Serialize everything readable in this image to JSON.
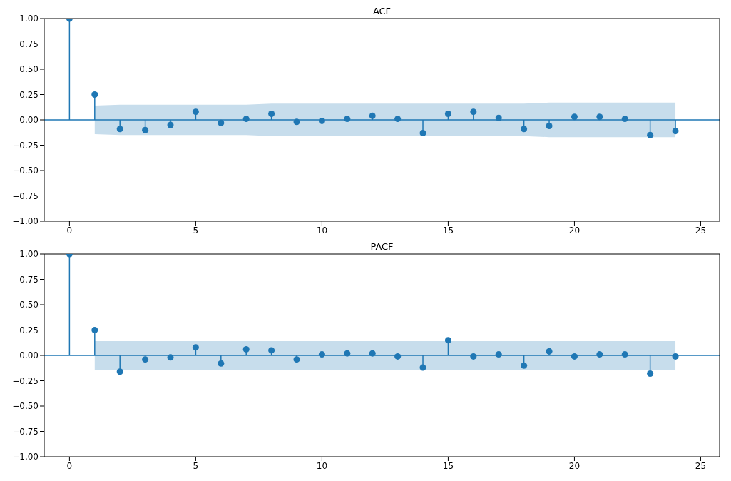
{
  "chart_data": [
    {
      "type": "lollipop",
      "title": "ACF",
      "xlim": [
        -1,
        25.75
      ],
      "xticks": [
        0,
        5,
        10,
        15,
        20,
        25
      ],
      "ylim": [
        -1,
        1
      ],
      "yticks": [
        {
          "value": -1,
          "label": "−1.00"
        },
        {
          "value": -0.75,
          "label": "−0.75"
        },
        {
          "value": -0.5,
          "label": "−0.50"
        },
        {
          "value": -0.25,
          "label": "−0.25"
        },
        {
          "value": 0,
          "label": "0.00"
        },
        {
          "value": 0.25,
          "label": "0.25"
        },
        {
          "value": 0.5,
          "label": "0.50"
        },
        {
          "value": 0.75,
          "label": "0.75"
        },
        {
          "value": 1,
          "label": "1.00"
        }
      ],
      "marker": "circle",
      "line_style": "solid",
      "ref_lines": [
        {
          "axis": "y",
          "value": 0,
          "color": "#1f77b4"
        }
      ],
      "series": [
        {
          "color": "#1f77b4",
          "x": [
            0,
            1,
            2,
            3,
            4,
            5,
            6,
            7,
            8,
            9,
            10,
            11,
            12,
            13,
            14,
            15,
            16,
            17,
            18,
            19,
            20,
            21,
            22,
            23,
            24
          ],
          "values": [
            1,
            0.25,
            -0.09,
            -0.1,
            -0.05,
            0.08,
            -0.03,
            0.01,
            0.06,
            -0.02,
            -0.01,
            0.01,
            0.04,
            0.01,
            -0.13,
            0.06,
            0.08,
            0.02,
            -0.09,
            -0.06,
            0.03,
            0.03,
            0.01,
            -0.15,
            -0.11
          ],
          "lower": [
            null,
            -0.14,
            -0.15,
            -0.15,
            -0.15,
            -0.15,
            -0.15,
            -0.15,
            -0.16,
            -0.16,
            -0.16,
            -0.16,
            -0.16,
            -0.16,
            -0.16,
            -0.16,
            -0.16,
            -0.16,
            -0.16,
            -0.17,
            -0.17,
            -0.17,
            -0.17,
            -0.17,
            -0.17
          ],
          "upper": [
            null,
            0.14,
            0.15,
            0.15,
            0.15,
            0.15,
            0.15,
            0.15,
            0.16,
            0.16,
            0.16,
            0.16,
            0.16,
            0.16,
            0.16,
            0.16,
            0.16,
            0.16,
            0.16,
            0.17,
            0.17,
            0.17,
            0.17,
            0.17,
            0.17
          ]
        }
      ]
    },
    {
      "type": "lollipop",
      "title": "PACF",
      "xlim": [
        -1,
        25.75
      ],
      "xticks": [
        0,
        5,
        10,
        15,
        20,
        25
      ],
      "ylim": [
        -1,
        1
      ],
      "yticks": [
        {
          "value": -1,
          "label": "−1.00"
        },
        {
          "value": -0.75,
          "label": "−0.75"
        },
        {
          "value": -0.5,
          "label": "−0.50"
        },
        {
          "value": -0.25,
          "label": "−0.25"
        },
        {
          "value": 0,
          "label": "0.00"
        },
        {
          "value": 0.25,
          "label": "0.25"
        },
        {
          "value": 0.5,
          "label": "0.50"
        },
        {
          "value": 0.75,
          "label": "0.75"
        },
        {
          "value": 1,
          "label": "1.00"
        }
      ],
      "marker": "circle",
      "line_style": "solid",
      "ref_lines": [
        {
          "axis": "y",
          "value": 0,
          "color": "#1f77b4"
        }
      ],
      "series": [
        {
          "color": "#1f77b4",
          "x": [
            0,
            1,
            2,
            3,
            4,
            5,
            6,
            7,
            8,
            9,
            10,
            11,
            12,
            13,
            14,
            15,
            16,
            17,
            18,
            19,
            20,
            21,
            22,
            23,
            24
          ],
          "values": [
            1,
            0.25,
            -0.16,
            -0.04,
            -0.02,
            0.08,
            -0.08,
            0.06,
            0.05,
            -0.04,
            0.01,
            0.02,
            0.02,
            -0.01,
            -0.12,
            0.15,
            -0.01,
            0.01,
            -0.1,
            0.04,
            -0.01,
            0.01,
            0.01,
            -0.18,
            -0.01
          ],
          "lower": [
            null,
            -0.14,
            -0.14,
            -0.14,
            -0.14,
            -0.14,
            -0.14,
            -0.14,
            -0.14,
            -0.14,
            -0.14,
            -0.14,
            -0.14,
            -0.14,
            -0.14,
            -0.14,
            -0.14,
            -0.14,
            -0.14,
            -0.14,
            -0.14,
            -0.14,
            -0.14,
            -0.14,
            -0.14
          ],
          "upper": [
            null,
            0.14,
            0.14,
            0.14,
            0.14,
            0.14,
            0.14,
            0.14,
            0.14,
            0.14,
            0.14,
            0.14,
            0.14,
            0.14,
            0.14,
            0.14,
            0.14,
            0.14,
            0.14,
            0.14,
            0.14,
            0.14,
            0.14,
            0.14,
            0.14
          ]
        }
      ]
    }
  ]
}
